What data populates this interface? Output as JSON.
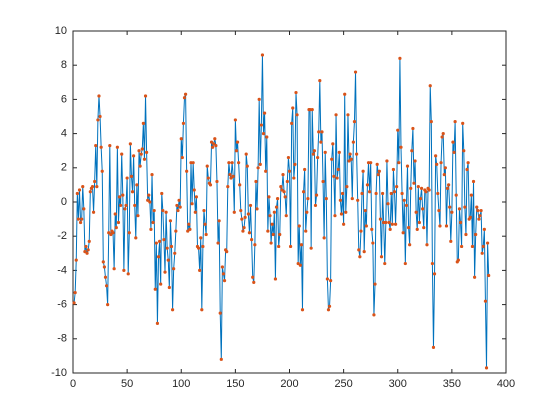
{
  "chart_data": {
    "type": "line",
    "x": [
      1,
      2,
      3,
      4,
      5,
      6,
      7,
      8,
      9,
      10,
      11,
      12,
      13,
      14,
      15,
      16,
      17,
      18,
      19,
      20,
      21,
      22,
      23,
      24,
      25,
      26,
      27,
      28,
      29,
      30,
      31,
      32,
      33,
      34,
      35,
      36,
      37,
      38,
      39,
      40,
      41,
      42,
      43,
      44,
      45,
      46,
      47,
      48,
      49,
      50,
      51,
      52,
      53,
      54,
      55,
      56,
      57,
      58,
      59,
      60,
      61,
      62,
      63,
      64,
      65,
      66,
      67,
      68,
      69,
      70,
      71,
      72,
      73,
      74,
      75,
      76,
      77,
      78,
      79,
      80,
      81,
      82,
      83,
      84,
      85,
      86,
      87,
      88,
      89,
      90,
      91,
      92,
      93,
      94,
      95,
      96,
      97,
      98,
      99,
      100,
      101,
      102,
      103,
      104,
      105,
      106,
      107,
      108,
      109,
      110,
      111,
      112,
      113,
      114,
      115,
      116,
      117,
      118,
      119,
      120,
      121,
      122,
      123,
      124,
      125,
      126,
      127,
      128,
      129,
      130,
      131,
      132,
      133,
      134,
      135,
      136,
      137,
      138,
      139,
      140,
      141,
      142,
      143,
      144,
      145,
      146,
      147,
      148,
      149,
      150,
      151,
      152,
      153,
      154,
      155,
      156,
      157,
      158,
      159,
      160,
      161,
      162,
      163,
      164,
      165,
      166,
      167,
      168,
      169,
      170,
      171,
      172,
      173,
      174,
      175,
      176,
      177,
      178,
      179,
      180,
      181,
      182,
      183,
      184,
      185,
      186,
      187,
      188,
      189,
      190,
      191,
      192,
      193,
      194,
      195,
      196,
      197,
      198,
      199,
      200,
      201,
      202,
      203,
      204,
      205,
      206,
      207,
      208,
      209,
      210,
      211,
      212,
      213,
      214,
      215,
      216,
      217,
      218,
      219,
      220,
      221,
      222,
      223,
      224,
      225,
      226,
      227,
      228,
      229,
      230,
      231,
      232,
      233,
      234,
      235,
      236,
      237,
      238,
      239,
      240,
      241,
      242,
      243,
      244,
      245,
      246,
      247,
      248,
      249,
      250,
      251,
      252,
      253,
      254,
      255,
      256,
      257,
      258,
      259,
      260,
      261,
      262,
      263,
      264,
      265,
      266,
      267,
      268,
      269,
      270,
      271,
      272,
      273,
      274,
      275,
      276,
      277,
      278,
      279,
      280,
      281,
      282,
      283,
      284,
      285,
      286,
      287,
      288,
      289,
      290,
      291,
      292,
      293,
      294,
      295,
      296,
      297,
      298,
      299,
      300,
      301,
      302,
      303,
      304,
      305,
      306,
      307,
      308,
      309,
      310,
      311,
      312,
      313,
      314,
      315,
      316,
      317,
      318,
      319,
      320,
      321,
      322,
      323,
      324,
      325,
      326,
      327,
      328,
      329,
      330,
      331,
      332,
      333,
      334,
      335,
      336,
      337,
      338,
      339,
      340,
      341,
      342,
      343,
      344,
      345,
      346,
      347,
      348,
      349,
      350,
      351,
      352,
      353,
      354,
      355,
      356,
      357,
      358,
      359,
      360,
      361,
      362,
      363,
      364,
      365,
      366,
      367,
      368,
      369,
      370,
      371,
      372,
      373,
      374,
      375,
      376,
      377,
      378,
      379,
      380,
      381,
      382,
      383,
      384
    ],
    "values": [
      -5.9,
      -5.3,
      -3.4,
      0.5,
      -1.0,
      0.7,
      -1.2,
      -1.0,
      0.9,
      -0.4,
      -2.9,
      -2.6,
      -3.0,
      -2.8,
      -2.3,
      0.6,
      0.8,
      0.9,
      -0.6,
      1.2,
      3.3,
      0.9,
      4.8,
      6.2,
      5.0,
      3.2,
      1.8,
      -3.5,
      -3.8,
      -4.4,
      -4.9,
      -6.0,
      -1.8,
      3.3,
      -1.9,
      -1.7,
      -1.8,
      -3.9,
      -0.7,
      -1.5,
      3.2,
      -1.2,
      0.3,
      -0.2,
      2.8,
      0.4,
      -4.0,
      -0.4,
      -0.2,
      1.4,
      -4.2,
      -1.8,
      3.4,
      1.5,
      0.6,
      2.7,
      -0.2,
      -2.1,
      1.0,
      -0.8,
      3.0,
      2.1,
      2.8,
      3.1,
      4.6,
      2.5,
      6.2,
      2.9,
      0.1,
      0.4,
      0.0,
      -1.6,
      1.6,
      -1.2,
      -0.5,
      -5.1,
      -2.4,
      -7.1,
      -3.2,
      -2.3,
      -4.8,
      0.5,
      -0.5,
      -2.2,
      -4.1,
      -0.6,
      -2.7,
      -3.4,
      -5.0,
      -1.1,
      -2.6,
      -6.3,
      -3.9,
      -3.0,
      -1.7,
      -0.2,
      -0.5,
      0.1,
      -0.3,
      3.7,
      2.6,
      4.6,
      6.1,
      6.3,
      1.8,
      -1.7,
      -1.3,
      -1.6,
      2.3,
      -0.1,
      2.3,
      0.7,
      -0.6,
      0.3,
      -2.6,
      -2.7,
      -4.0,
      -2.1,
      -6.3,
      -2.6,
      -0.5,
      -1.3,
      -1.9,
      2.1,
      1.4,
      1.1,
      1.0,
      3.5,
      3.2,
      3.4,
      3.7,
      3.3,
      1.2,
      -2.4,
      -1.1,
      -6.5,
      -9.2,
      -3.8,
      -4.2,
      -4.6,
      -2.8,
      -2.9,
      0.9,
      2.3,
      1.6,
      1.4,
      2.3,
      1.5,
      -0.6,
      4.8,
      3.0,
      3.5,
      2.3,
      1.0,
      -0.5,
      -1.0,
      -1.7,
      -1.5,
      -0.9,
      2.8,
      2.1,
      -0.7,
      -1.8,
      -0.2,
      -2.2,
      -4.4,
      -4.7,
      -2.5,
      1.2,
      -0.4,
      2.0,
      6.0,
      2.2,
      4.5,
      8.6,
      4.0,
      5.2,
      1.8,
      3.8,
      -1.7,
      0.3,
      -0.8,
      -2.4,
      -1.3,
      -1.9,
      -0.6,
      -4.5,
      -0.3,
      0.2,
      -2.6,
      -1.9,
      0.9,
      0.7,
      1.6,
      0.6,
      0.3,
      -0.8,
      1.2,
      2.6,
      1.8,
      -2.6,
      4.6,
      5.5,
      1.4,
      2.2,
      6.4,
      5.1,
      -3.6,
      -1.4,
      -3.7,
      -2.5,
      -6.3,
      0.6,
      1.9,
      -1.7,
      -0.6,
      0.2,
      5.4,
      5.4,
      -2.7,
      5.4,
      2.8,
      3.0,
      -0.2,
      0.4,
      2.6,
      4.1,
      7.1,
      3.5,
      4.1,
      1.2,
      -2.1,
      2.9,
      0.2,
      -4.5,
      -6.3,
      -6.1,
      -4.6,
      2.5,
      3.4,
      1.5,
      -0.8,
      5.1,
      1.4,
      1.9,
      2.9,
      0.1,
      -0.7,
      0.5,
      -1.3,
      6.3,
      -0.6,
      0.9,
      5.1,
      2.4,
      2.8,
      2.5,
      0.2,
      3.5,
      4.7,
      7.6,
      2.8,
      0.1,
      -2.8,
      -3.2,
      -1.7,
      0.5,
      1.8,
      -2.9,
      -0.5,
      -1.4,
      1.0,
      2.3,
      0.6,
      2.3,
      -1.6,
      -2.4,
      -6.6,
      -4.8,
      0.5,
      2.2,
      1.6,
      1.8,
      -1.0,
      -3.2,
      0.5,
      -1.2,
      -3.6,
      -1.2,
      2.4,
      -0.1,
      -1.2,
      -1.6,
      0.5,
      -1.3,
      1.9,
      0.6,
      -1.3,
      0.9,
      4.2,
      2.3,
      8.4,
      3.2,
      0.5,
      -1.8,
      0.1,
      -3.6,
      -0.2,
      2.1,
      -1.5,
      -2.5,
      0.8,
      3.0,
      4.3,
      1.1,
      2.4,
      -0.6,
      -1.6,
      0.9,
      -1.2,
      0.2,
      0.8,
      -0.4,
      -1.5,
      0.7,
      0.6,
      -2.5,
      0.8,
      0.7,
      6.8,
      4.7,
      -3.6,
      -8.5,
      -4.2,
      2.7,
      2.2,
      0.5,
      -0.5,
      -1.4,
      2.3,
      3.8,
      4.0,
      1.6,
      2.0,
      -1.4,
      0.8,
      1.0,
      -0.3,
      -2.3,
      -0.6,
      3.5,
      2.9,
      4.7,
      0.4,
      -3.5,
      -3.4,
      -0.4,
      -1.2,
      -2.6,
      4.6,
      3.0,
      -0.3,
      -1.9,
      1.9,
      2.3,
      -1.0,
      -0.9,
      0.4,
      -2.6,
      1.2,
      -4.4,
      -1.9,
      -0.3,
      -0.5,
      -1.0,
      -0.8,
      -0.5,
      -3.0,
      -2.6,
      -1.6,
      -5.8,
      -9.7,
      -2.4,
      -4.3
    ],
    "color": "#0072BD",
    "marker_color": "#D95319",
    "xlim": [
      0,
      400
    ],
    "xticks": [
      0,
      50,
      100,
      150,
      200,
      250,
      300,
      350,
      400
    ],
    "ylim": [
      -10,
      10
    ],
    "yticks": [
      -10,
      -8,
      -6,
      -4,
      -2,
      0,
      2,
      4,
      6,
      8,
      10
    ],
    "grid": false
  }
}
